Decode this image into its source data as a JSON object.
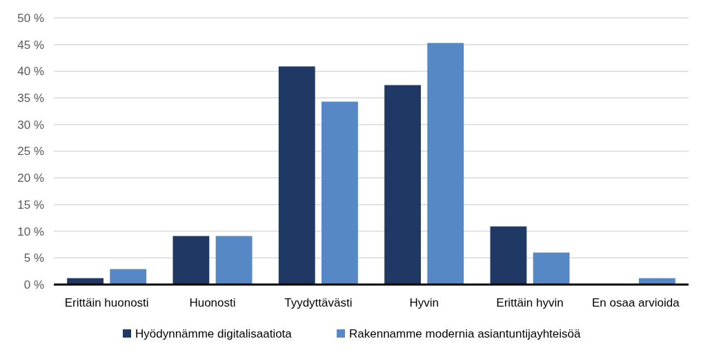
{
  "chart_data": {
    "type": "bar",
    "categories": [
      "Erittäin huonosti",
      "Huonosti",
      "Tyydyttävästi",
      "Hyvin",
      "Erittäin hyvin",
      "En osaa arvioida"
    ],
    "series": [
      {
        "name": "Hyödynnämme digitalisaatiota",
        "color": "#203864",
        "values": [
          1.2,
          9.1,
          40.9,
          37.4,
          10.9,
          0
        ]
      },
      {
        "name": "Rakennamme modernia asiantuntijayhteisöä",
        "color": "#5588c4",
        "values": [
          2.9,
          9.1,
          34.3,
          45.3,
          6.0,
          1.2
        ]
      }
    ],
    "ylim": [
      0,
      50
    ],
    "yticks": [
      {
        "value": 0,
        "label": "0 %"
      },
      {
        "value": 5,
        "label": "5 %"
      },
      {
        "value": 10,
        "label": "10 %"
      },
      {
        "value": 15,
        "label": "15 %"
      },
      {
        "value": 20,
        "label": "20 %"
      },
      {
        "value": 25,
        "label": "25 %"
      },
      {
        "value": 30,
        "label": "30 %"
      },
      {
        "value": 35,
        "label": "35 %"
      },
      {
        "value": 40,
        "label": "40 %"
      },
      {
        "value": 45,
        "label": "45 %"
      },
      {
        "value": 50,
        "label": "50 %"
      }
    ],
    "grid": "y",
    "legend": "bottom"
  }
}
